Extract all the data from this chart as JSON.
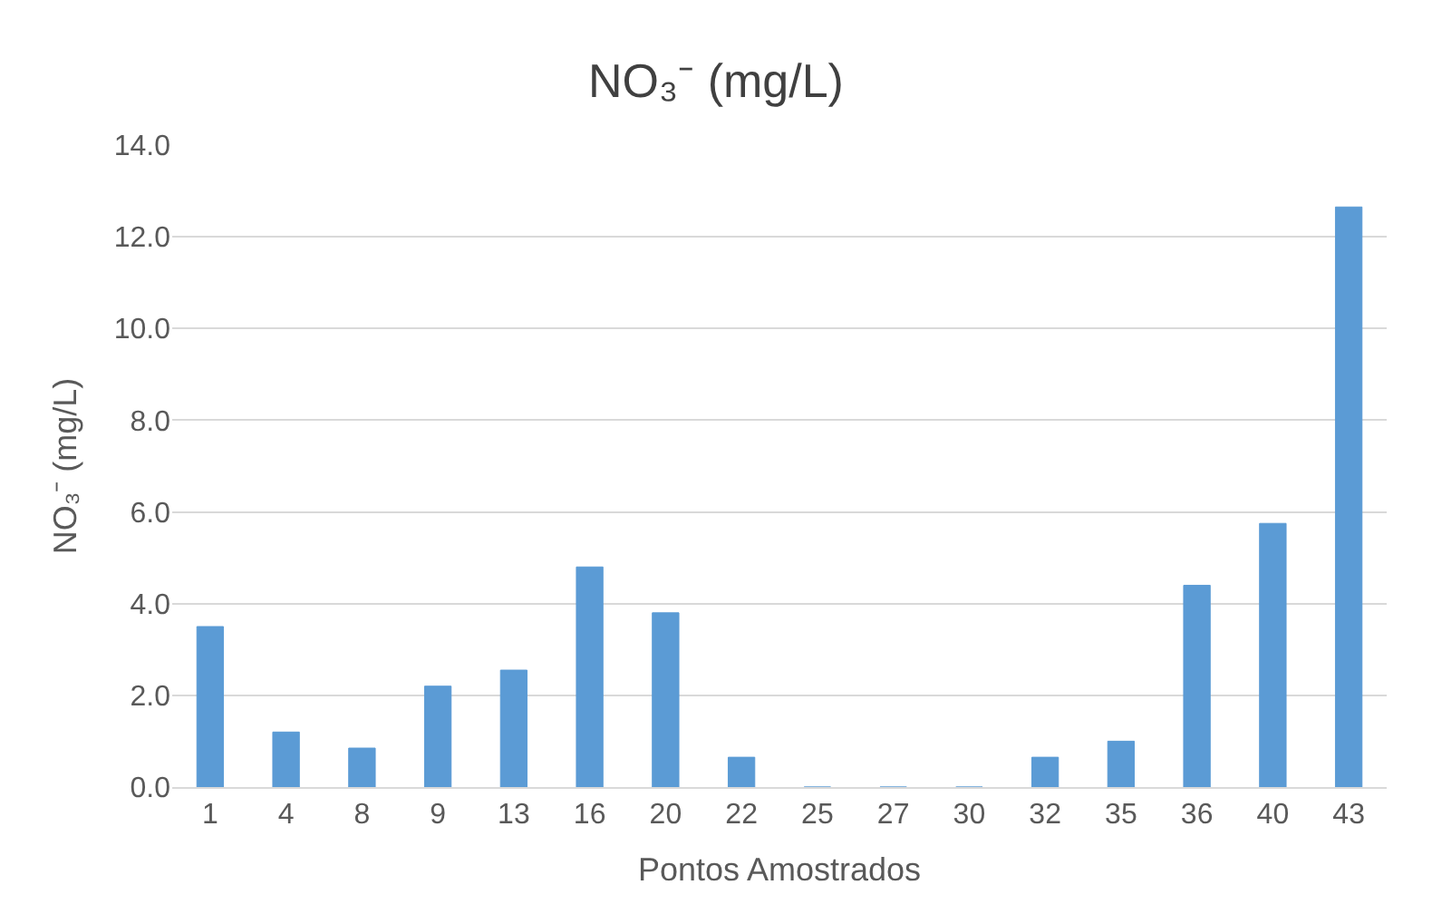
{
  "chart_data": {
    "type": "bar",
    "title": "NO₃⁻ (mg/L)",
    "xlabel": "Pontos Amostrados",
    "ylabel": "NO₃⁻ (mg/L)",
    "categories": [
      "1",
      "4",
      "8",
      "9",
      "13",
      "16",
      "20",
      "22",
      "25",
      "27",
      "30",
      "32",
      "35",
      "36",
      "40",
      "43"
    ],
    "values": [
      3.5,
      1.2,
      0.85,
      2.2,
      2.55,
      4.8,
      3.8,
      0.65,
      0,
      0,
      0,
      0.65,
      1.0,
      4.4,
      5.75,
      12.65
    ],
    "color": "#5b9bd5",
    "ylim": [
      0,
      14
    ],
    "yticks": [
      {
        "value": 0,
        "label": "0.0"
      },
      {
        "value": 2,
        "label": "2.0"
      },
      {
        "value": 4,
        "label": "4.0"
      },
      {
        "value": 6,
        "label": "6.0"
      },
      {
        "value": 8,
        "label": "8.0"
      },
      {
        "value": 10,
        "label": "10.0"
      },
      {
        "value": 12,
        "label": "12.0"
      },
      {
        "value": 14,
        "label": "14.0"
      }
    ],
    "grid": "y"
  }
}
